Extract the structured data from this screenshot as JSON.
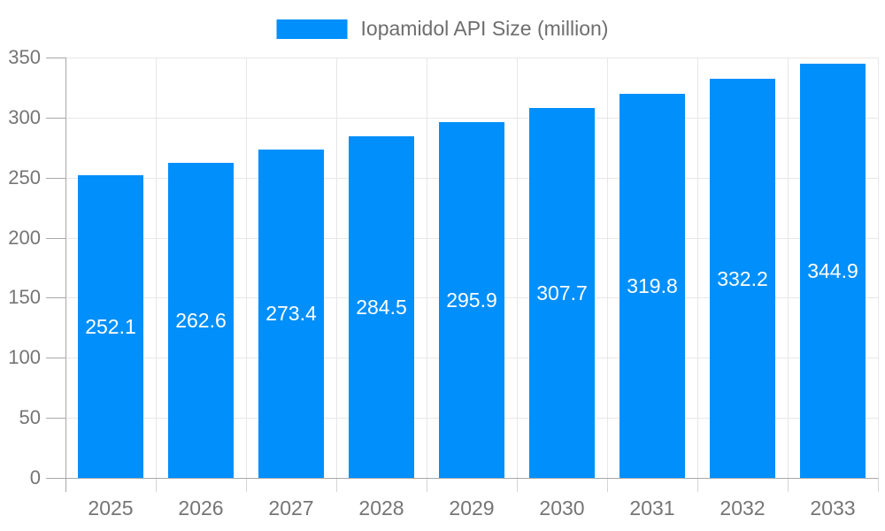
{
  "legend": {
    "label": "Iopamidol API Size (million)"
  },
  "chart_data": {
    "type": "bar",
    "title": "Iopamidol API Size (million)",
    "categories": [
      "2025",
      "2026",
      "2027",
      "2028",
      "2029",
      "2030",
      "2031",
      "2032",
      "2033"
    ],
    "series": [
      {
        "name": "Iopamidol API Size (million)",
        "values": [
          252.1,
          262.6,
          273.4,
          284.5,
          295.9,
          307.7,
          319.8,
          332.2,
          344.9
        ]
      }
    ],
    "value_labels": [
      "252.1",
      "262.6",
      "273.4",
      "284.5",
      "295.9",
      "307.7",
      "319.8",
      "332.2",
      "344.9"
    ],
    "xlabel": "",
    "ylabel": "",
    "ylim": [
      0,
      350
    ],
    "yticks": [
      0,
      50,
      100,
      150,
      200,
      250,
      300,
      350
    ],
    "grid": "on",
    "legend_position": "top-center",
    "value_label_position": "center-of-bar"
  },
  "colors": {
    "bar": "#008ffb",
    "grid": "#e7e7e7",
    "axis": "#a8a8a8",
    "tick_minor": "#d4d4d4",
    "axis_label": "#757575",
    "value_label": "#ffffff",
    "legend_text": "#6e6e6e",
    "background": "#ffffff"
  }
}
